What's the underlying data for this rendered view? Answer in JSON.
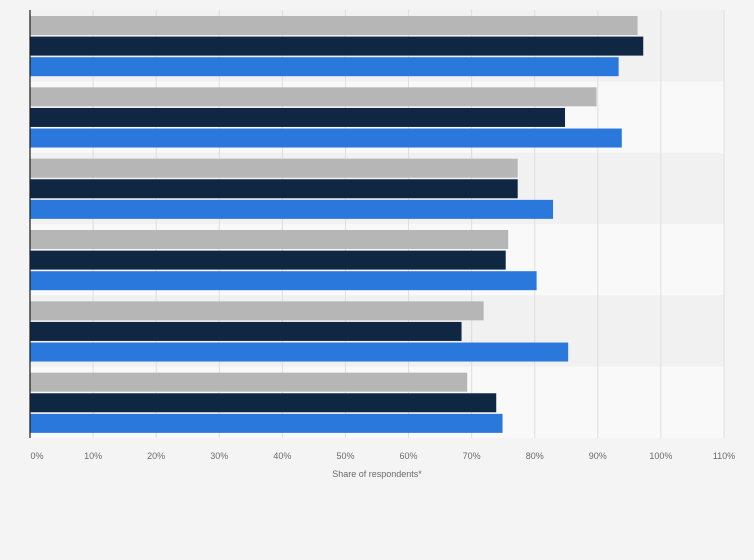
{
  "chart_data": {
    "type": "bar",
    "orientation": "horizontal",
    "title": "",
    "xlabel": "Share of respondents*",
    "ylabel": "",
    "xlim": [
      0,
      110
    ],
    "x_ticks": [
      "0%",
      "10%",
      "20%",
      "30%",
      "40%",
      "50%",
      "60%",
      "70%",
      "80%",
      "90%",
      "100%",
      "110%"
    ],
    "categories": [
      "",
      "",
      "",
      "",
      "",
      ""
    ],
    "grid": true,
    "legend": "none",
    "series": [
      {
        "color": "#b6b6b6",
        "values": [
          96.3,
          89.8,
          77.3,
          75.8,
          71.9,
          69.3
        ]
      },
      {
        "color": "#0f2742",
        "values": [
          97.2,
          84.8,
          77.3,
          75.4,
          68.4,
          73.9
        ]
      },
      {
        "color": "#2b78dd",
        "values": [
          93.3,
          93.8,
          82.9,
          80.3,
          85.3,
          74.9
        ]
      }
    ]
  }
}
